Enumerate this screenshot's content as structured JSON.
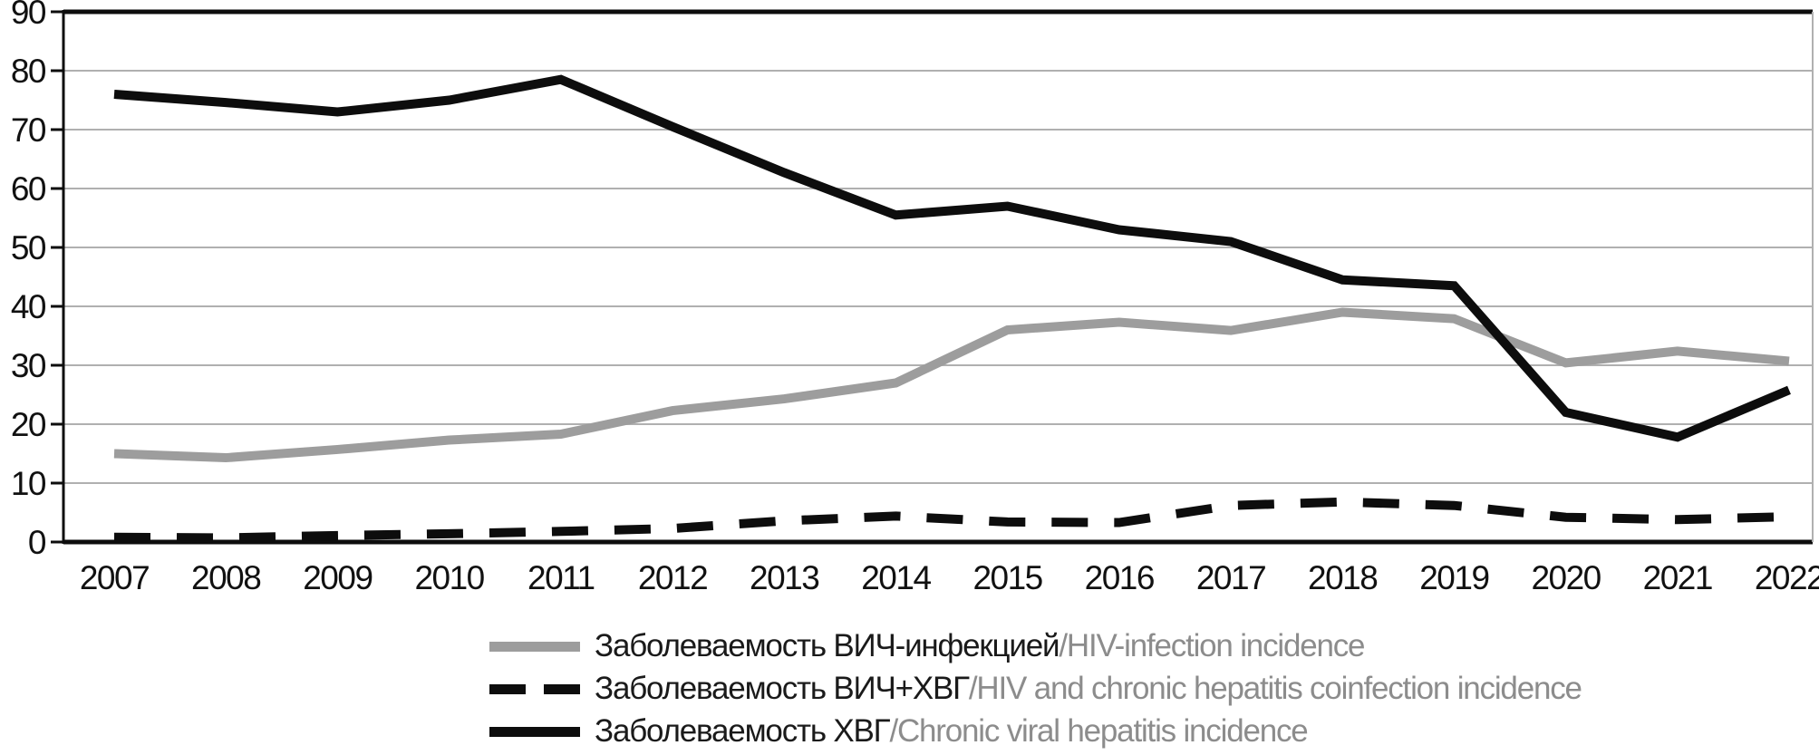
{
  "chart_data": {
    "type": "line",
    "x": [
      2007,
      2008,
      2009,
      2010,
      2011,
      2012,
      2013,
      2014,
      2015,
      2016,
      2017,
      2018,
      2019,
      2020,
      2021,
      2022
    ],
    "ylim": [
      0,
      90
    ],
    "yticks": [
      0,
      10,
      20,
      30,
      40,
      50,
      60,
      70,
      80,
      90
    ],
    "grid": "horizontal",
    "legend_position": "bottom-left",
    "series": [
      {
        "name": "Заболеваемость ВИЧ-инфекцией/HIV-infection incidence",
        "style": "solid",
        "color": "#9d9d9d",
        "values": [
          15.0,
          14.3,
          15.7,
          17.3,
          18.3,
          22.3,
          24.3,
          27.0,
          36.0,
          37.3,
          35.9,
          39.0,
          37.9,
          30.4,
          32.4,
          30.7
        ]
      },
      {
        "name": "Заболеваемость ВИЧ+ХВГ/HIV and chronic hepatitis coinfection incidence",
        "style": "dashed",
        "color": "#0d0d0d",
        "values": [
          0.8,
          0.7,
          1.1,
          1.4,
          1.8,
          2.3,
          3.6,
          4.4,
          3.4,
          3.3,
          6.2,
          6.8,
          6.2,
          4.2,
          3.8,
          4.3
        ]
      },
      {
        "name": "Заболеваемость ХВГ/Chronic viral hepatitis incidence",
        "style": "solid",
        "color": "#0d0d0d",
        "values": [
          76.0,
          74.6,
          73.0,
          75.0,
          78.5,
          70.5,
          62.7,
          55.5,
          57.0,
          53.0,
          51.0,
          44.5,
          43.5,
          22.0,
          17.8,
          25.8
        ]
      }
    ]
  },
  "legend": {
    "items": [
      {
        "label_ru": "Заболеваемость ВИЧ-инфекцией",
        "label_en": "/HIV-infection incidence",
        "swatch": "gray-solid-line"
      },
      {
        "label_ru": "Заболеваемость ВИЧ+ХВГ",
        "label_en": "/HIV and chronic hepatitis coinfection incidence",
        "swatch": "black-dashed-line"
      },
      {
        "label_ru": "Заболеваемость ХВГ",
        "label_en": "/Chronic viral hepatitis incidence",
        "swatch": "black-solid-line"
      }
    ]
  },
  "colors": {
    "hiv_line": "#9d9d9d",
    "black_line": "#0d0d0d",
    "gridline": "#b0b0b0",
    "axis": "#0d0d0d",
    "label_text": "#111111",
    "legend_ru_text": "#1a1a1a",
    "legend_en_text": "#8c8c8c",
    "background": "#ffffff"
  }
}
